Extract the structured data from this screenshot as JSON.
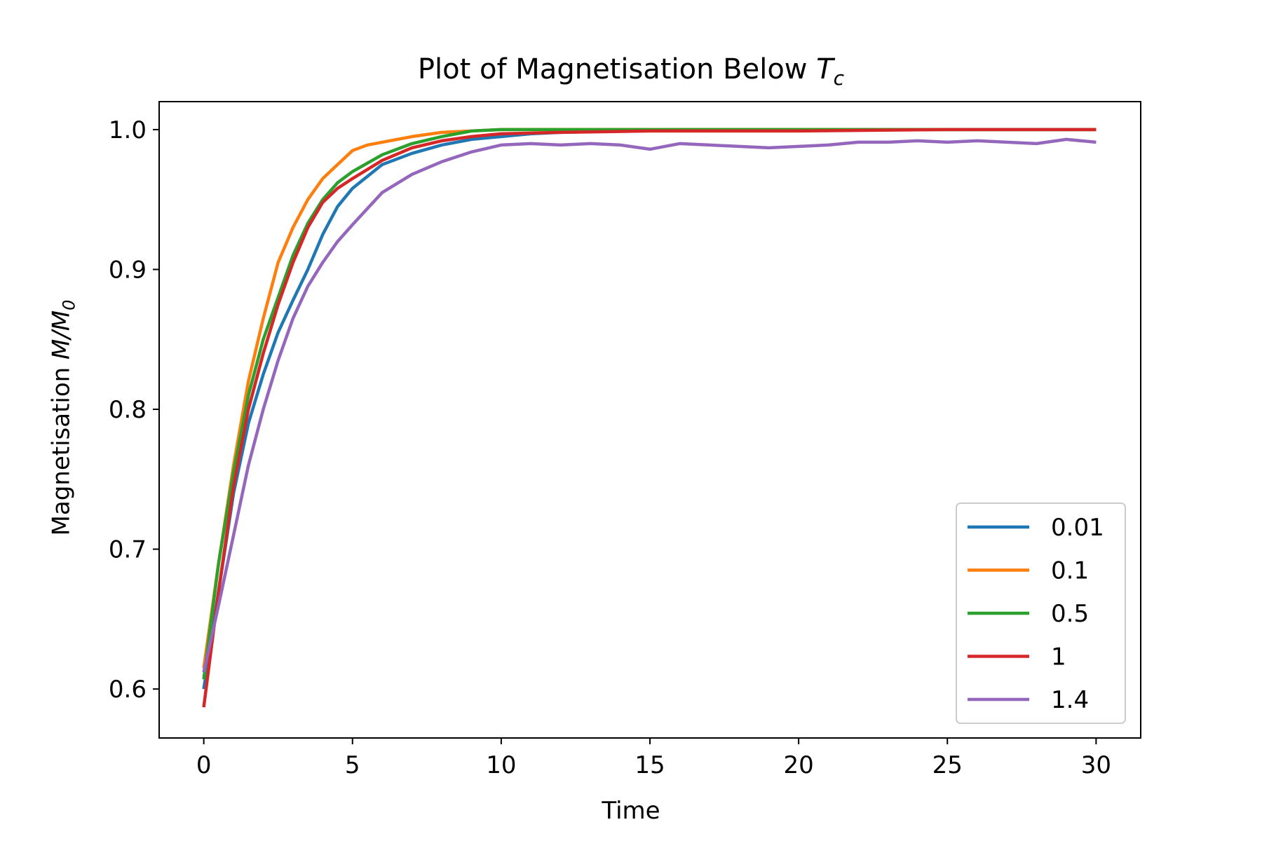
{
  "chart_data": {
    "type": "line",
    "title": {
      "prefix": "Plot of Magnetisation Below ",
      "symbol": "T",
      "subscript": "c"
    },
    "xlabel": "Time",
    "ylabel": {
      "prefix": "Magnetisation ",
      "symbol": "M/M",
      "subscript": "0"
    },
    "xlim": [
      -1.5,
      31.5
    ],
    "ylim": [
      0.565,
      1.02
    ],
    "xticks": [
      0,
      5,
      10,
      15,
      20,
      25,
      30
    ],
    "xtick_labels": [
      "0",
      "5",
      "10",
      "15",
      "20",
      "25",
      "30"
    ],
    "yticks": [
      0.6,
      0.7,
      0.8,
      0.9,
      1.0
    ],
    "ytick_labels": [
      "0.6",
      "0.7",
      "0.8",
      "0.9",
      "1.0"
    ],
    "grid": false,
    "legend_position": "lower-right",
    "series": [
      {
        "name": "0.01",
        "color": "#1f77b4",
        "x": [
          0,
          0.5,
          1,
          1.5,
          2,
          2.5,
          3,
          3.5,
          4,
          4.5,
          5,
          6,
          7,
          8,
          9,
          10,
          11,
          12,
          14,
          16,
          20,
          25,
          30
        ],
        "y": [
          0.6,
          0.67,
          0.74,
          0.79,
          0.825,
          0.855,
          0.878,
          0.9,
          0.925,
          0.945,
          0.958,
          0.975,
          0.983,
          0.989,
          0.993,
          0.995,
          0.997,
          0.998,
          0.999,
          1.0,
          1.0,
          1.0,
          1.0
        ]
      },
      {
        "name": "0.1",
        "color": "#ff7f0e",
        "x": [
          0,
          0.5,
          1,
          1.5,
          2,
          2.5,
          3,
          3.5,
          4,
          4.5,
          5,
          5.5,
          6,
          7,
          8,
          9,
          10,
          12,
          15,
          20,
          25,
          30
        ],
        "y": [
          0.615,
          0.69,
          0.76,
          0.82,
          0.865,
          0.905,
          0.93,
          0.95,
          0.965,
          0.975,
          0.985,
          0.989,
          0.991,
          0.995,
          0.998,
          0.999,
          1.0,
          1.0,
          1.0,
          1.0,
          1.0,
          1.0
        ]
      },
      {
        "name": "0.5",
        "color": "#2ca02c",
        "x": [
          0,
          0.5,
          1,
          1.5,
          2,
          2.5,
          3,
          3.5,
          4,
          4.5,
          5,
          6,
          7,
          8,
          9,
          10,
          12,
          15,
          20,
          25,
          30
        ],
        "y": [
          0.607,
          0.69,
          0.755,
          0.81,
          0.85,
          0.88,
          0.91,
          0.933,
          0.95,
          0.962,
          0.97,
          0.982,
          0.99,
          0.995,
          0.999,
          1.0,
          1.0,
          1.0,
          1.0,
          1.0,
          1.0
        ]
      },
      {
        "name": "1",
        "color": "#d62728",
        "x": [
          0,
          0.5,
          1,
          1.5,
          2,
          2.5,
          3,
          3.5,
          4,
          4.5,
          5,
          6,
          7,
          8,
          9,
          10,
          12,
          15,
          20,
          25,
          30
        ],
        "y": [
          0.587,
          0.67,
          0.745,
          0.8,
          0.84,
          0.875,
          0.905,
          0.93,
          0.948,
          0.958,
          0.965,
          0.978,
          0.987,
          0.992,
          0.995,
          0.997,
          0.998,
          0.999,
          0.999,
          1.0,
          1.0
        ]
      },
      {
        "name": "1.4",
        "color": "#9467bd",
        "x": [
          0,
          0.5,
          1,
          1.5,
          2,
          2.5,
          3,
          3.5,
          4,
          4.5,
          5,
          6,
          7,
          8,
          9,
          10,
          11,
          12,
          13,
          14,
          15,
          16,
          17,
          18,
          19,
          20,
          21,
          22,
          23,
          24,
          25,
          26,
          27,
          28,
          29,
          30
        ],
        "y": [
          0.612,
          0.66,
          0.71,
          0.76,
          0.8,
          0.835,
          0.865,
          0.888,
          0.905,
          0.92,
          0.932,
          0.955,
          0.968,
          0.977,
          0.984,
          0.989,
          0.99,
          0.989,
          0.99,
          0.989,
          0.986,
          0.99,
          0.989,
          0.988,
          0.987,
          0.988,
          0.989,
          0.991,
          0.991,
          0.992,
          0.991,
          0.992,
          0.991,
          0.99,
          0.993,
          0.991
        ]
      }
    ]
  }
}
